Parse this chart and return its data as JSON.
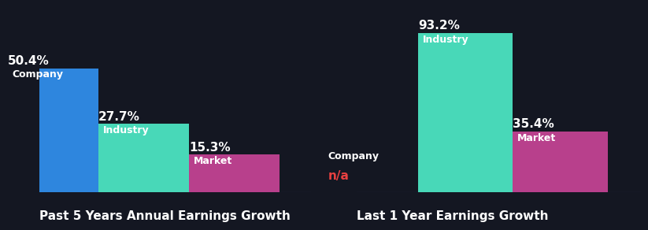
{
  "background_color": "#141722",
  "left_chart": {
    "title": "Past 5 Years Annual Earnings Growth",
    "bars": [
      {
        "label": "Company",
        "value": 50.4,
        "color": "#2e86de"
      },
      {
        "label": "Industry",
        "value": 27.7,
        "color": "#48d8b8"
      },
      {
        "label": "Market",
        "value": 15.3,
        "color": "#b8408c"
      }
    ],
    "ylim": [
      0,
      75
    ]
  },
  "right_chart": {
    "title": "Last 1 Year Earnings Growth",
    "bars": [
      {
        "label": "Company",
        "value": null,
        "color": "#2e86de"
      },
      {
        "label": "Industry",
        "value": 93.2,
        "color": "#48d8b8"
      },
      {
        "label": "Market",
        "value": 35.4,
        "color": "#b8408c"
      }
    ],
    "na_label": "n/a",
    "na_color": "#e84040",
    "ylim": [
      0,
      108
    ]
  },
  "text_color": "#ffffff",
  "title_fontsize": 11,
  "label_fontsize": 9,
  "value_fontsize": 11,
  "bar_width": 1.0,
  "x_positions": [
    0,
    1,
    2
  ],
  "xlim": [
    -0.15,
    2.85
  ]
}
